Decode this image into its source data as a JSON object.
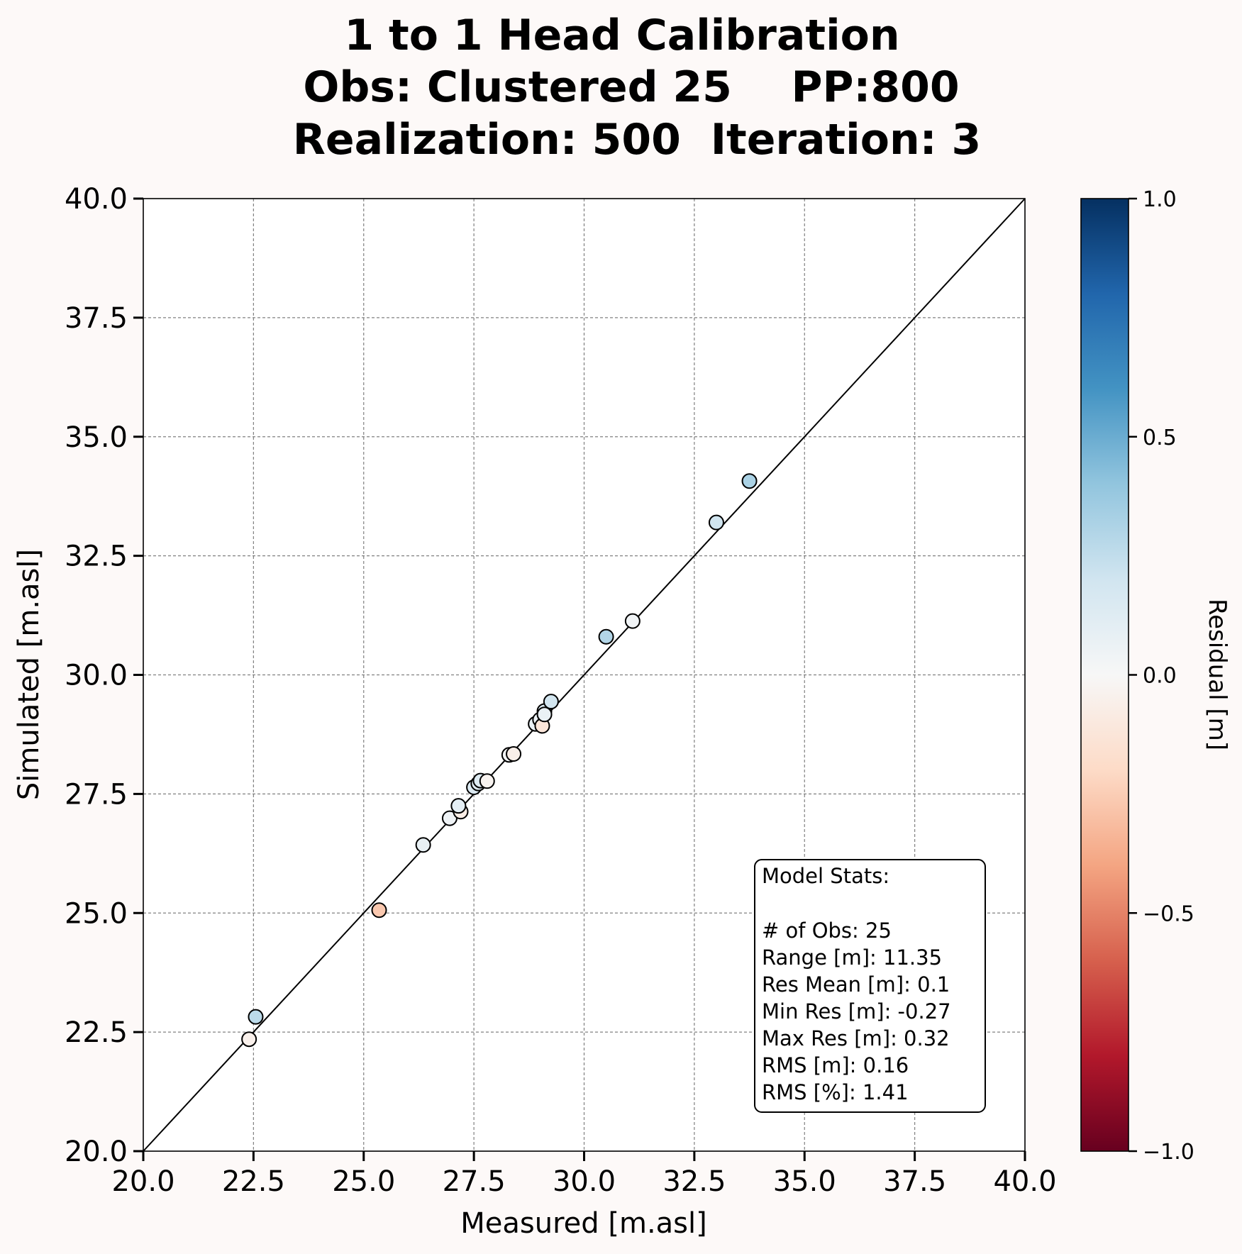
{
  "chart_data": {
    "type": "scatter",
    "title": [
      "1 to 1 Head Calibration",
      "Obs: Clustered 25    PP:800",
      "Realization: 500  Iteration: 3"
    ],
    "xlabel": "Measured [m.asl]",
    "ylabel": "Simulated [m.asl]",
    "xlim": [
      20.0,
      40.0
    ],
    "ylim": [
      20.0,
      40.0
    ],
    "xticks": [
      "20.0",
      "22.5",
      "25.0",
      "27.5",
      "30.0",
      "32.5",
      "35.0",
      "37.5",
      "40.0"
    ],
    "yticks": [
      "20.0",
      "22.5",
      "25.0",
      "27.5",
      "30.0",
      "32.5",
      "35.0",
      "37.5",
      "40.0"
    ],
    "grid": true,
    "reference_line": "1:1",
    "colorbar": {
      "label": "Residual [m]",
      "range": [
        -1.0,
        1.0
      ],
      "ticks": [
        "1.0",
        "0.5",
        "0.0",
        "−0.5",
        "−1.0"
      ],
      "colormap": "RdBu"
    },
    "points": [
      {
        "x": 22.4,
        "y": 22.35,
        "residual": -0.05
      },
      {
        "x": 22.55,
        "y": 22.82,
        "residual": 0.27
      },
      {
        "x": 25.35,
        "y": 25.06,
        "residual": -0.27
      },
      {
        "x": 26.35,
        "y": 26.43,
        "residual": 0.08
      },
      {
        "x": 26.95,
        "y": 26.99,
        "residual": 0.04
      },
      {
        "x": 27.2,
        "y": 27.13,
        "residual": -0.07
      },
      {
        "x": 27.15,
        "y": 27.25,
        "residual": 0.1
      },
      {
        "x": 27.5,
        "y": 27.64,
        "residual": 0.14
      },
      {
        "x": 27.6,
        "y": 27.72,
        "residual": 0.12
      },
      {
        "x": 27.65,
        "y": 27.78,
        "residual": 0.13
      },
      {
        "x": 27.8,
        "y": 27.77,
        "residual": -0.03
      },
      {
        "x": 28.3,
        "y": 28.32,
        "residual": 0.02
      },
      {
        "x": 28.4,
        "y": 28.34,
        "residual": -0.06
      },
      {
        "x": 28.9,
        "y": 28.97,
        "residual": 0.07
      },
      {
        "x": 29.0,
        "y": 29.06,
        "residual": 0.06
      },
      {
        "x": 29.05,
        "y": 28.93,
        "residual": -0.12
      },
      {
        "x": 29.1,
        "y": 29.24,
        "residual": 0.14
      },
      {
        "x": 29.1,
        "y": 29.17,
        "residual": 0.07
      },
      {
        "x": 29.25,
        "y": 29.44,
        "residual": 0.19
      },
      {
        "x": 30.5,
        "y": 30.8,
        "residual": 0.3
      },
      {
        "x": 31.1,
        "y": 31.13,
        "residual": 0.03
      },
      {
        "x": 33.0,
        "y": 33.2,
        "residual": 0.2
      },
      {
        "x": 33.75,
        "y": 34.07,
        "residual": 0.32
      }
    ],
    "stats_box": {
      "heading": "Model Stats:",
      "lines": [
        "# of Obs: 25",
        "Range [m]: 11.35",
        "Res Mean [m]: 0.1",
        "Min Res [m]: -0.27",
        "Max Res [m]: 0.32",
        "RMS [m]: 0.16",
        "RMS [%]: 1.41"
      ]
    }
  }
}
